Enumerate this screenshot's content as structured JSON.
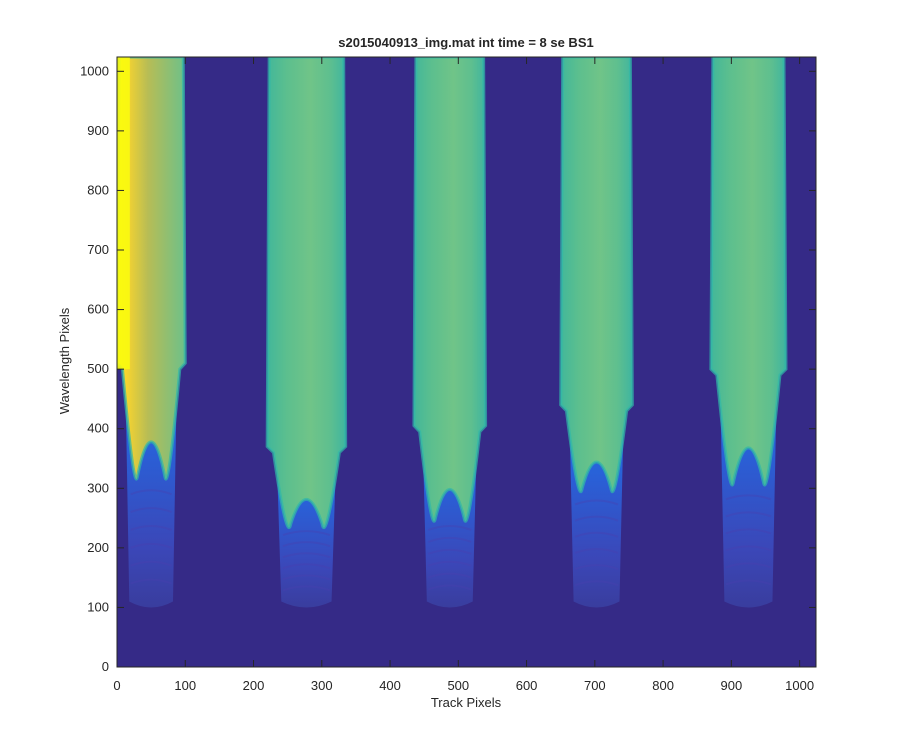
{
  "chart_data": {
    "type": "heatmap",
    "title": "s2015040913_img.mat int time = 8 se   BS1",
    "xlabel": "Track Pixels",
    "ylabel": "Wavelength Pixels",
    "xlim": [
      0,
      1024
    ],
    "ylim": [
      0,
      1024
    ],
    "xticks": [
      0,
      100,
      200,
      300,
      400,
      500,
      600,
      700,
      800,
      900,
      1000
    ],
    "yticks": [
      0,
      100,
      200,
      300,
      400,
      500,
      600,
      700,
      800,
      900,
      1000
    ],
    "colormap": "parula",
    "colors": {
      "background": "#352a87",
      "low": "#3a3ca0",
      "mid_blue": "#1f64e0",
      "teal": "#30b8a8",
      "green": "#6cc08a",
      "peak": "#f9fb0e"
    },
    "tracks": [
      {
        "x_start": 0,
        "x_end": 100,
        "top_threshold": 500,
        "notch_min": 320,
        "blue_bottom": 110
      },
      {
        "x_start": 220,
        "x_end": 335,
        "top_threshold": 360,
        "notch_min": 240,
        "blue_bottom": 110
      },
      {
        "x_start": 435,
        "x_end": 540,
        "top_threshold": 395,
        "notch_min": 250,
        "blue_bottom": 110
      },
      {
        "x_start": 650,
        "x_end": 755,
        "top_threshold": 430,
        "notch_min": 300,
        "blue_bottom": 110
      },
      {
        "x_start": 870,
        "x_end": 980,
        "top_threshold": 490,
        "notch_min": 310,
        "blue_bottom": 110
      }
    ],
    "peak_column": {
      "x_start": 0,
      "x_end": 10,
      "y_min": 500,
      "y_max": 1024
    }
  }
}
